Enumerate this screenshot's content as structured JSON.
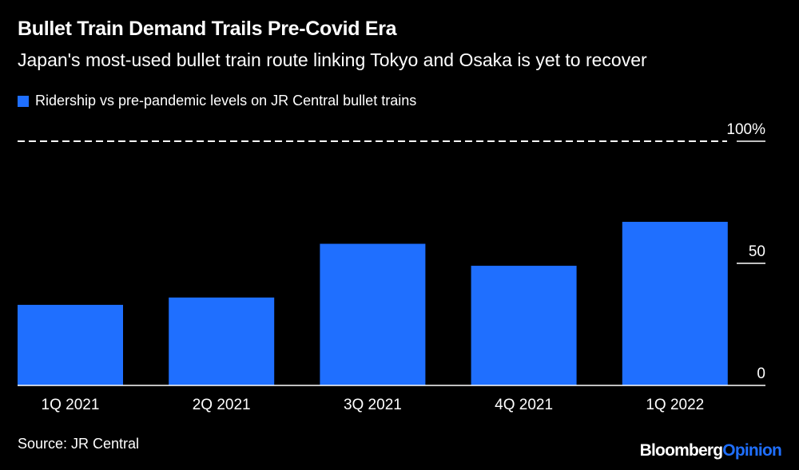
{
  "title": "Bullet Train Demand Trails Pre-Covid Era",
  "subtitle": "Japan's most-used bullet train route linking Tokyo and Osaka is yet to recover",
  "source": "Source: JR Central",
  "brand": {
    "part1": "Bloomberg",
    "part2": "Opinion"
  },
  "colors": {
    "bar": "#1f6fff",
    "background": "#000000",
    "text": "#ffffff",
    "brand_accent": "#1f6fff"
  },
  "chart_data": {
    "type": "bar",
    "categories": [
      "1Q 2021",
      "2Q 2021",
      "3Q 2021",
      "4Q 2021",
      "1Q 2022"
    ],
    "series": [
      {
        "name": "Ridership vs pre-pandemic levels on JR Central bullet trains",
        "values": [
          33,
          36,
          58,
          49,
          67
        ]
      }
    ],
    "ylim": [
      0,
      100
    ],
    "yticks": [
      0,
      50,
      100
    ],
    "ytick_labels": [
      "0",
      "50",
      "100%"
    ],
    "reference_line": 100,
    "legend_position": "top-left",
    "grid": false
  }
}
